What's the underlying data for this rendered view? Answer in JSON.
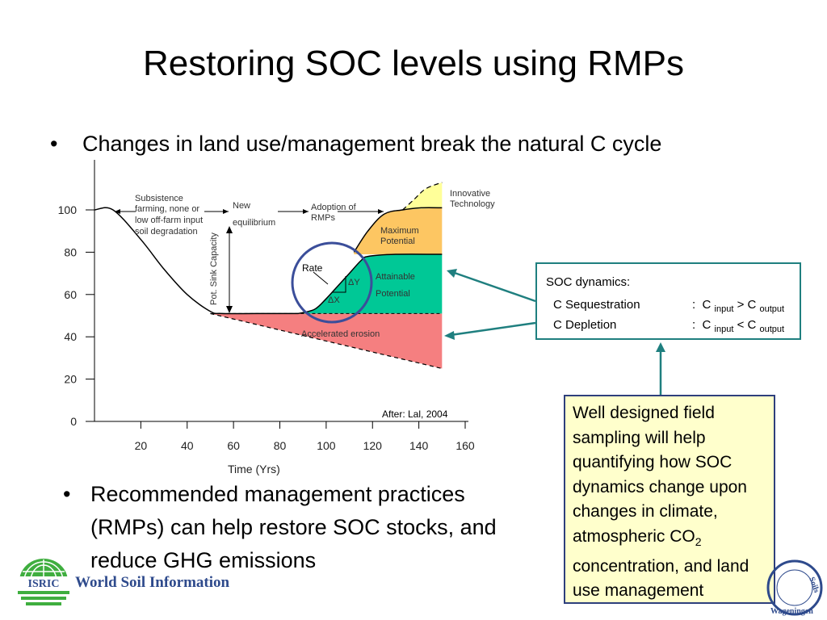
{
  "slide": {
    "title": "Restoring SOC levels using RMPs",
    "bullets": [
      {
        "symbol": "•",
        "text": "Changes in land use/management break the natural C cycle"
      },
      {
        "symbol": "•",
        "text": "Recommended management practices (RMPs) can help restore SOC stocks, and reduce GHG emissions"
      }
    ]
  },
  "chart_data": {
    "type": "area",
    "xlabel": "Time (Yrs)",
    "ylabel": "",
    "x_ticks": [
      20,
      40,
      60,
      80,
      100,
      120,
      140,
      160
    ],
    "y_ticks": [
      0,
      20,
      40,
      60,
      80,
      100
    ],
    "xlim": [
      0,
      160
    ],
    "ylim": [
      0,
      120
    ],
    "baseline_curve": {
      "x": [
        0,
        8,
        20,
        30,
        40,
        50,
        55,
        70,
        88,
        95,
        100,
        105,
        110,
        120,
        150
      ],
      "y": [
        100,
        100,
        86,
        72,
        60,
        52,
        51,
        51,
        51,
        53,
        58,
        64,
        69,
        72,
        74
      ]
    },
    "regions": [
      {
        "name": "Accelerated erosion",
        "color": "#f57f80",
        "upper": {
          "x": [
            50,
            150
          ],
          "y": [
            51,
            51
          ]
        },
        "lower": {
          "x": [
            50,
            150
          ],
          "y": [
            51,
            25
          ]
        }
      },
      {
        "name": "Attainable Potential",
        "color": "#00c896",
        "upper": {
          "x": [
            88,
            95,
            100,
            105,
            110,
            115,
            118,
            130,
            150
          ],
          "y": [
            51,
            53,
            58,
            64,
            70,
            76,
            78,
            79,
            79
          ]
        },
        "lower": {
          "x": [
            88,
            150
          ],
          "y": [
            51,
            51
          ]
        }
      },
      {
        "name": "Maximum Potential",
        "color": "#fdc662",
        "upper": {
          "x": [
            112,
            118,
            125,
            133,
            141,
            150
          ],
          "y": [
            80,
            90,
            98,
            100,
            101,
            101
          ]
        },
        "lower": {
          "x": [
            112,
            150
          ],
          "y": [
            79,
            79
          ]
        }
      },
      {
        "name": "Innovative Technology",
        "color": "#ffff99",
        "upper": {
          "x": [
            133,
            138,
            143,
            150
          ],
          "y": [
            100,
            105,
            110,
            113
          ]
        },
        "lower": {
          "x": [
            133,
            150
          ],
          "y": [
            100,
            101
          ]
        }
      }
    ],
    "annotations": [
      {
        "text": "Subsistence farming, none or low off-farm input soil degradation",
        "lines": [
          "Subsistence",
          "farming, none or",
          "low off-farm input",
          "soil degradation"
        ]
      },
      {
        "lines": [
          "New",
          "equilibrium"
        ]
      },
      {
        "lines": [
          "Adoption of",
          "RMPs"
        ]
      },
      {
        "lines": [
          "Innovative",
          "Technology"
        ]
      },
      {
        "lines": [
          "Maximum",
          "Potential"
        ]
      },
      {
        "lines": [
          "Attainable",
          "Potential"
        ]
      },
      {
        "lines": [
          "Accelerated erosion"
        ]
      },
      {
        "lines": [
          "Pot. Sink Capacity"
        ]
      },
      {
        "lines": [
          "Rate"
        ]
      },
      {
        "lines": [
          "ΔY"
        ]
      },
      {
        "lines": [
          "ΔX"
        ]
      }
    ],
    "source_note": "After: Lal, 2004"
  },
  "soc_box": {
    "title": "SOC dynamics:",
    "rows": [
      {
        "label": "C Sequestration",
        "colon": ":",
        "c1": "C",
        "sub1": "input",
        "op": ">",
        "c2": "C",
        "sub2": "output"
      },
      {
        "label": "C Depletion",
        "colon": ":",
        "c1": "C",
        "sub1": "input",
        "op": "<",
        "c2": "C",
        "sub2": "output"
      }
    ]
  },
  "note_box": {
    "text_before": "Well designed field sampling will help quantifying how SOC dynamics change upon changes in climate, atmospheric CO",
    "subscript": "2",
    "text_after": " concentration, and land use management"
  },
  "footer": {
    "logo_text": "ISRIC",
    "logo_caption": "World Soil Information",
    "seal_text_1": "Soils",
    "seal_text_2": "Wageningen"
  },
  "colors": {
    "teal_arrow": "#1f7f7f",
    "note_border": "#2e3f7c",
    "note_bg": "#ffffcc",
    "circle": "#3b4e9a",
    "logo_green": "#3fae3f",
    "logo_blue": "#2e4a8c"
  }
}
